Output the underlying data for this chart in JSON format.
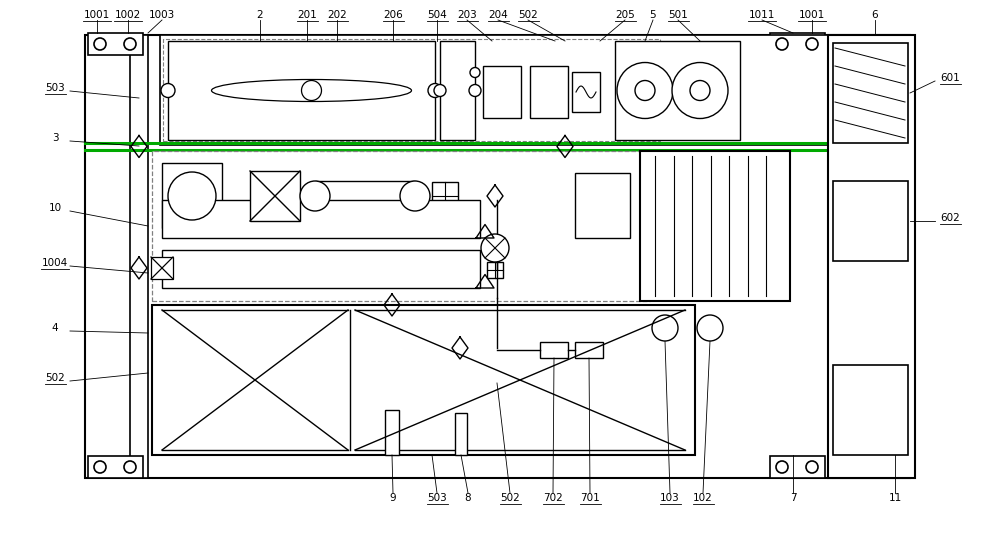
{
  "fig_width": 10.0,
  "fig_height": 5.33,
  "dpi": 100
}
